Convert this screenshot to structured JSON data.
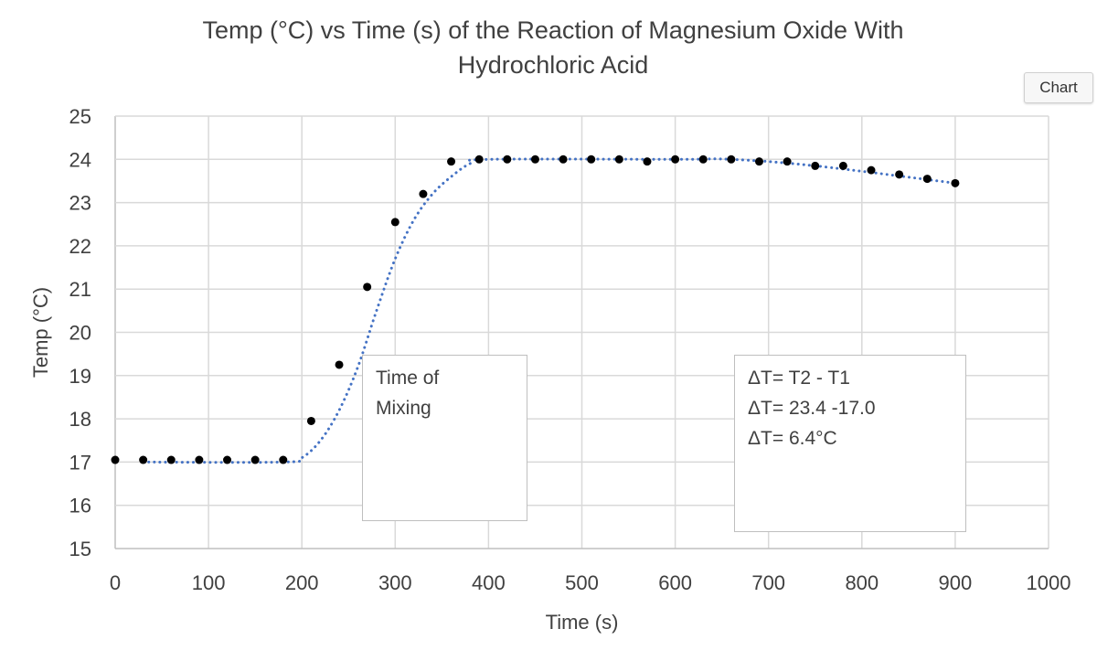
{
  "chart_data": {
    "type": "scatter",
    "title": "Temp (°C) vs Time (s) of the Reaction of Magnesium Oxide With Hydrochloric Acid",
    "xlabel": "Time (s)",
    "ylabel": "Temp (°C)",
    "xlim": [
      0,
      1000
    ],
    "ylim": [
      15,
      25
    ],
    "xticks": [
      0,
      100,
      200,
      300,
      400,
      500,
      600,
      700,
      800,
      900,
      1000
    ],
    "yticks": [
      15,
      16,
      17,
      18,
      19,
      20,
      21,
      22,
      23,
      24,
      25
    ],
    "grid": true,
    "legend": "none",
    "colors": {
      "points": "#000000",
      "trendline": "#4472c4",
      "grid": "#d9d9d9"
    },
    "points": {
      "x": [
        0,
        30,
        60,
        90,
        120,
        150,
        180,
        210,
        240,
        270,
        300,
        330,
        360,
        390,
        420,
        450,
        480,
        510,
        540,
        570,
        600,
        630,
        660,
        690,
        720,
        750,
        780,
        810,
        840,
        870,
        900
      ],
      "y": [
        17.05,
        17.05,
        17.05,
        17.05,
        17.05,
        17.05,
        17.05,
        17.95,
        19.25,
        21.05,
        22.55,
        23.2,
        23.95,
        24.0,
        24.0,
        24.0,
        24.0,
        24.0,
        24.0,
        23.95,
        24.0,
        24.0,
        24.0,
        23.95,
        23.95,
        23.85,
        23.85,
        23.75,
        23.65,
        23.55,
        23.45
      ]
    },
    "trendline": {
      "style": "dotted",
      "x": [
        30,
        180,
        200,
        220,
        240,
        260,
        280,
        300,
        320,
        340,
        360,
        380,
        400,
        600,
        660,
        750,
        900
      ],
      "y": [
        17.0,
        17.0,
        17.1,
        17.5,
        18.2,
        19.2,
        20.5,
        21.7,
        22.6,
        23.2,
        23.6,
        23.9,
        24.0,
        24.0,
        24.0,
        23.85,
        23.45
      ]
    },
    "annotations": [
      {
        "lines": [
          "Time of",
          "Mixing"
        ]
      },
      {
        "lines": [
          "ΔT= T2 - T1",
          "ΔT= 23.4 -17.0",
          "ΔT= 6.4°C"
        ]
      }
    ]
  },
  "ui": {
    "chart_button": "Chart"
  }
}
